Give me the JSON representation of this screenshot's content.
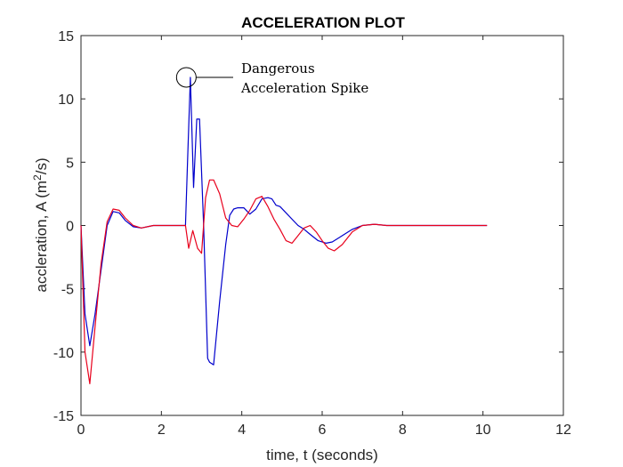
{
  "chart_data": {
    "type": "line",
    "title": "ACCELERATION PLOT",
    "xlabel": "time, t (seconds)",
    "ylabel_prefix": "accleration, A (m",
    "ylabel_sup": "2",
    "ylabel_suffix": "/s)",
    "xlim": [
      0,
      12
    ],
    "ylim": [
      -15,
      15
    ],
    "xticks": [
      0,
      2,
      4,
      6,
      8,
      10,
      12
    ],
    "yticks": [
      -15,
      -10,
      -5,
      0,
      5,
      10,
      15
    ],
    "grid": false,
    "series": [
      {
        "color": "#0000cc",
        "x": [
          0,
          0.1,
          0.22,
          0.35,
          0.5,
          0.65,
          0.8,
          0.95,
          1.1,
          1.3,
          1.5,
          1.8,
          2.0,
          2.3,
          2.6,
          2.65,
          2.72,
          2.8,
          2.88,
          2.95,
          3.05,
          3.15,
          3.2,
          3.3,
          3.45,
          3.6,
          3.7,
          3.8,
          3.9,
          4.05,
          4.2,
          4.35,
          4.5,
          4.65,
          4.75,
          4.85,
          4.95,
          5.1,
          5.25,
          5.4,
          5.55,
          5.7,
          5.9,
          6.1,
          6.25,
          6.5,
          6.75,
          7.0,
          7.3,
          7.6,
          8.0,
          8.5,
          9.0,
          9.5,
          10.1
        ],
        "y": [
          0,
          -7,
          -9.5,
          -7,
          -3.5,
          0,
          1.1,
          1.0,
          0.4,
          -0.1,
          -0.2,
          0,
          0,
          0,
          0,
          5,
          11.7,
          3,
          8.4,
          8.4,
          0,
          -10.5,
          -10.8,
          -11,
          -6,
          -1.5,
          0.8,
          1.3,
          1.4,
          1.4,
          0.9,
          1.3,
          2.1,
          2.2,
          2.1,
          1.6,
          1.5,
          1.0,
          0.5,
          0,
          -0.3,
          -0.7,
          -1.2,
          -1.4,
          -1.3,
          -0.8,
          -0.3,
          0,
          0.1,
          0,
          0,
          0,
          0,
          0,
          0
        ]
      },
      {
        "color": "#e8001c",
        "x": [
          0,
          0.1,
          0.22,
          0.35,
          0.5,
          0.65,
          0.8,
          0.95,
          1.1,
          1.3,
          1.5,
          1.8,
          2.0,
          2.3,
          2.6,
          2.68,
          2.78,
          2.9,
          3.0,
          3.1,
          3.2,
          3.3,
          3.45,
          3.6,
          3.75,
          3.9,
          4.05,
          4.2,
          4.35,
          4.5,
          4.65,
          4.8,
          4.95,
          5.1,
          5.25,
          5.4,
          5.55,
          5.7,
          5.85,
          6.0,
          6.15,
          6.3,
          6.5,
          6.75,
          7.0,
          7.3,
          7.6,
          8.0,
          8.5,
          9.0,
          9.5,
          10.1
        ],
        "y": [
          0,
          -10,
          -12.5,
          -8,
          -3,
          0.3,
          1.3,
          1.2,
          0.6,
          0,
          -0.2,
          0,
          0,
          0,
          0,
          -1.8,
          -0.4,
          -1.8,
          -2.2,
          2.2,
          3.6,
          3.6,
          2.5,
          0.6,
          0,
          -0.1,
          0.5,
          1.2,
          2.1,
          2.3,
          1.5,
          0.5,
          -0.3,
          -1.2,
          -1.4,
          -0.8,
          -0.2,
          0,
          -0.5,
          -1.2,
          -1.8,
          -2.0,
          -1.5,
          -0.5,
          0,
          0.1,
          0,
          0,
          0,
          0,
          0,
          0
        ]
      }
    ],
    "annotation": {
      "lines": [
        "Dangerous",
        "Acceleration Spike"
      ],
      "target_x": 2.62,
      "target_y": 11.7
    }
  }
}
